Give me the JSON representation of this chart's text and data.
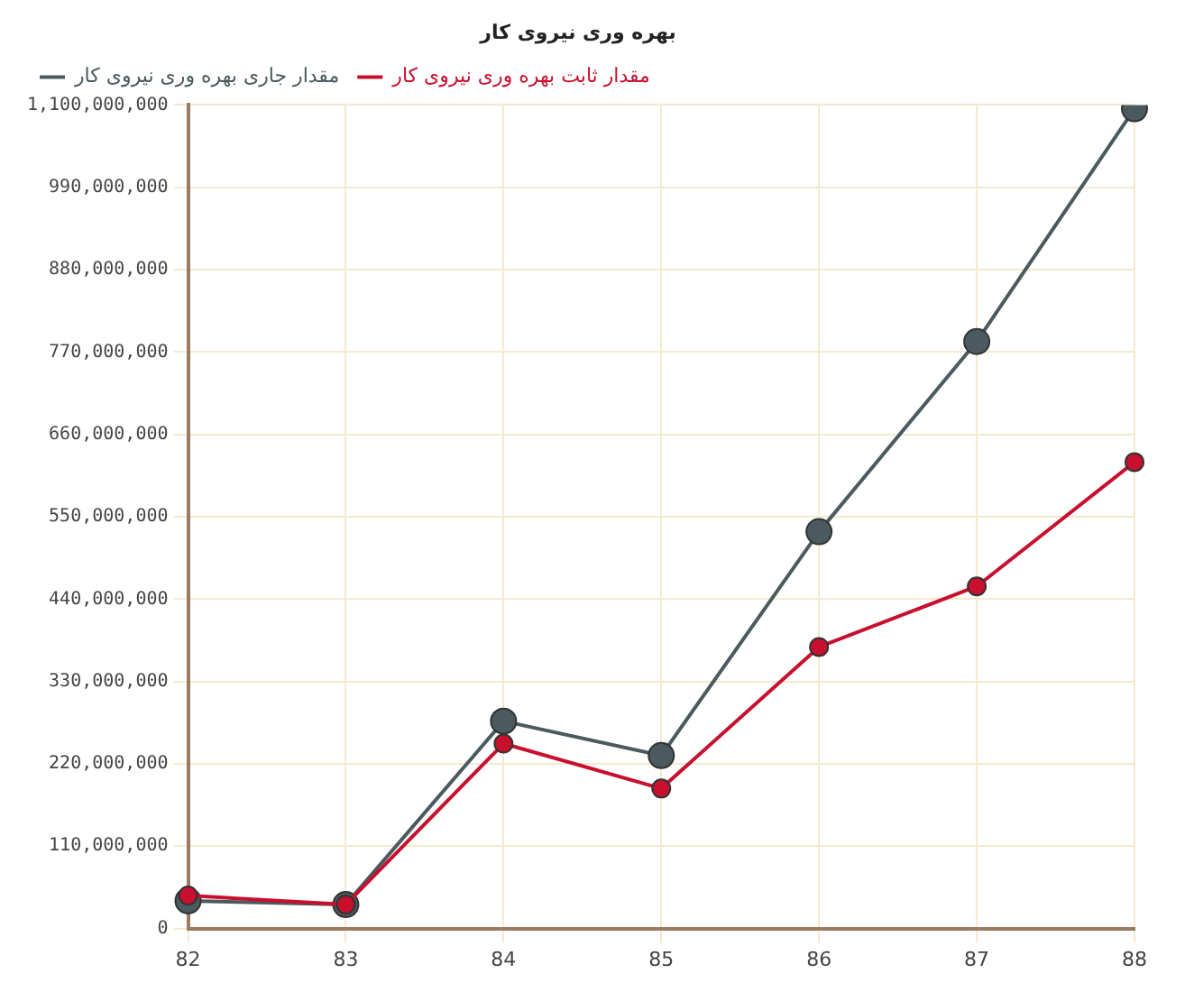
{
  "chart_data": {
    "type": "line",
    "title": "بهره وری نیروی کار",
    "categories": [
      "82",
      "83",
      "84",
      "85",
      "86",
      "87",
      "88"
    ],
    "series": [
      {
        "name": "مقدار جاری بهره وری نیروی کار",
        "color": "#4a5a5e",
        "values": [
          37000000,
          32000000,
          277000000,
          231000000,
          530000000,
          784000000,
          1095000000
        ]
      },
      {
        "name": "مقدار ثابت بهره وری نیروی کار",
        "color": "#c8102e",
        "values": [
          44000000,
          32000000,
          247000000,
          187000000,
          376000000,
          457000000,
          623000000
        ]
      }
    ],
    "ylim": [
      0,
      1100000000
    ],
    "yticks": [
      0,
      {
        "value": 110000000,
        "label": "110,000,000"
      },
      {
        "value": 220000000,
        "label": "220,000,000"
      },
      {
        "value": 330000000,
        "label": "330,000,000"
      },
      {
        "value": 440000000,
        "label": "440,000,000"
      },
      {
        "value": 550000000,
        "label": "550,000,000"
      },
      {
        "value": 660000000,
        "label": "660,000,000"
      },
      {
        "value": 770000000,
        "label": "770,000,000"
      },
      {
        "value": 880000000,
        "label": "880,000,000"
      },
      {
        "value": 990000000,
        "label": "990,000,000"
      },
      {
        "value": 1100000000,
        "label": "1,100,000,000"
      }
    ],
    "grid": true,
    "legend": "top left",
    "marker": "circle",
    "line_style": "solid"
  }
}
